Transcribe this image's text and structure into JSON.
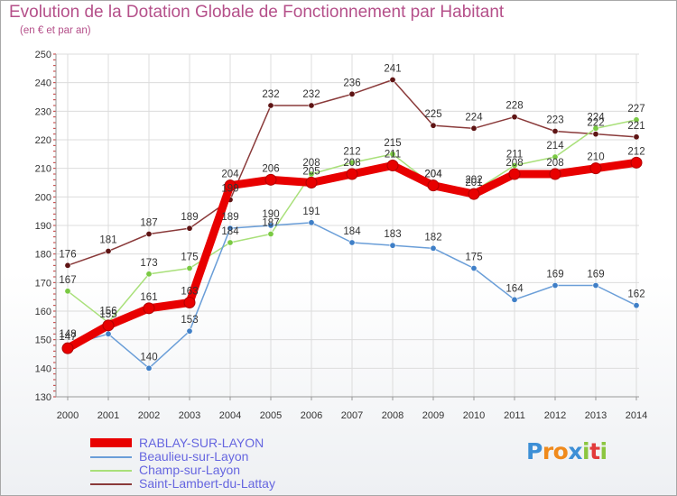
{
  "header": {
    "title": "Evolution de la Dotation Globale de Fonctionnement par Habitant",
    "subtitle": "(en € et par an)"
  },
  "brand": {
    "logo_letters": [
      "P",
      "r",
      "o",
      "x",
      "i",
      "t",
      "i"
    ],
    "logo_colors": [
      "#3d8fd6",
      "#f08a1c",
      "#f08a1c",
      "#3d8fd6",
      "#8cc63f",
      "#e23b3b",
      "#8cc63f"
    ]
  },
  "chart_data": {
    "type": "line",
    "title": "Evolution de la Dotation Globale de Fonctionnement par Habitant",
    "subtitle": "(en € et par an)",
    "xlabel": "",
    "ylabel": "",
    "x": [
      "2000",
      "2001",
      "2002",
      "2003",
      "2004",
      "2005",
      "2006",
      "2007",
      "2008",
      "2009",
      "2010",
      "2011",
      "2012",
      "2013",
      "2014"
    ],
    "ylim": [
      130,
      250
    ],
    "yticks": [
      130,
      140,
      150,
      160,
      170,
      180,
      190,
      200,
      210,
      220,
      230,
      240,
      250
    ],
    "grid": true,
    "legend_position": "bottom-left",
    "series": [
      {
        "name": "RABLAY-SUR-LAYON",
        "color": "#e80000",
        "marker": "#e80000",
        "width": 9,
        "values": [
          147,
          155,
          161,
          163,
          204,
          206,
          205,
          208,
          211,
          204,
          201,
          208,
          208,
          210,
          212
        ]
      },
      {
        "name": "Beaulieu-sur-Layon",
        "color": "#6a9ed8",
        "marker": "#3f7fc7",
        "width": 1.5,
        "values": [
          148,
          152,
          140,
          153,
          189,
          190,
          191,
          184,
          183,
          182,
          175,
          164,
          169,
          169,
          162
        ]
      },
      {
        "name": "Champ-sur-Layon",
        "color": "#a9e07a",
        "marker": "#7ac943",
        "width": 1.5,
        "values": [
          167,
          156,
          173,
          175,
          184,
          187,
          208,
          212,
          215,
          204,
          202,
          211,
          214,
          224,
          227
        ]
      },
      {
        "name": "Saint-Lambert-du-Lattay",
        "color": "#8a3a3a",
        "marker": "#5e1414",
        "width": 1.5,
        "values": [
          176,
          181,
          187,
          189,
          199,
          232,
          232,
          236,
          241,
          225,
          224,
          228,
          223,
          222,
          221
        ]
      }
    ],
    "data_labels": [
      {
        "series": 0,
        "values": [
          147,
          155,
          161,
          163,
          204,
          206,
          205,
          208,
          211,
          204,
          201,
          208,
          208,
          210,
          212
        ]
      },
      {
        "series": 1,
        "values": [
          148,
          null,
          140,
          153,
          189,
          190,
          191,
          184,
          183,
          182,
          175,
          164,
          169,
          169,
          162
        ]
      },
      {
        "series": 2,
        "values": [
          167,
          156,
          173,
          175,
          184,
          187,
          208,
          212,
          215,
          204,
          202,
          211,
          214,
          224,
          227
        ]
      },
      {
        "series": 3,
        "values": [
          176,
          181,
          187,
          189,
          199,
          232,
          232,
          236,
          241,
          225,
          224,
          228,
          223,
          222,
          221
        ]
      }
    ]
  }
}
